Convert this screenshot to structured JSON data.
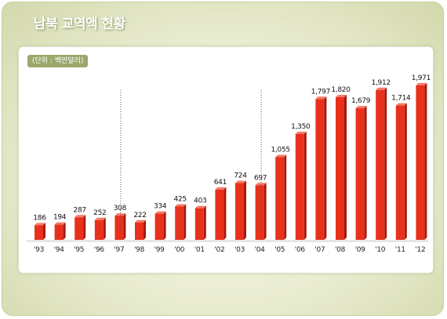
{
  "header": {
    "title": "남북 교역액 현황"
  },
  "unit_label": "(단위 : 백만달러)",
  "colors": {
    "bar_front": "#e8311c",
    "bar_side": "#a8180c",
    "bar_top": "#f27a66",
    "dotted_line": "#555555"
  },
  "chart_data": {
    "type": "bar",
    "title": "남북 교역액 현황",
    "unit": "(단위 : 백만달러)",
    "categories": [
      "'93",
      "'94",
      "'95",
      "'96",
      "'97",
      "'98",
      "'99",
      "'00",
      "'01",
      "'02",
      "'03",
      "'04",
      "'05",
      "'06",
      "'07",
      "'08",
      "'09",
      "'10",
      "'11",
      "'12"
    ],
    "value_labels": [
      "186",
      "194",
      "287",
      "252",
      "308",
      "222",
      "334",
      "425",
      "403",
      "641",
      "724",
      "697",
      "1,055",
      "1,350",
      "1,797",
      "1,820",
      "1,679",
      "1,912",
      "1,714",
      "1,971"
    ],
    "values": [
      186,
      194,
      287,
      252,
      308,
      222,
      334,
      425,
      403,
      641,
      724,
      697,
      1055,
      1350,
      1797,
      1820,
      1679,
      1912,
      1714,
      1971
    ],
    "ylim": [
      0,
      2100
    ],
    "dotted_dividers_after": [
      "'97",
      "'04"
    ],
    "legend": "none",
    "grid": false
  }
}
